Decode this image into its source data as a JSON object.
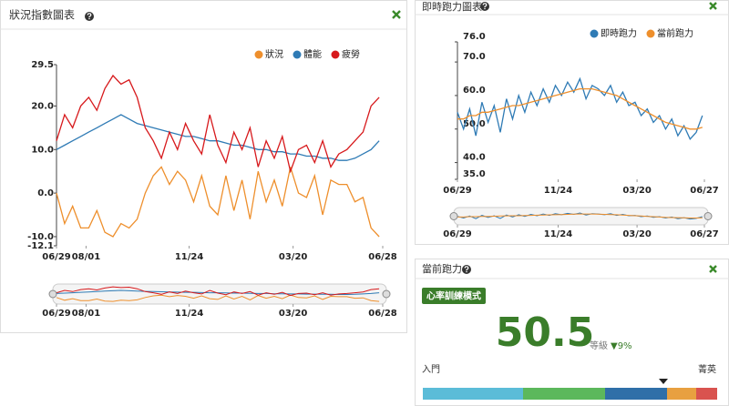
{
  "chart_data": [
    {
      "type": "line",
      "title": "狀況指數圖表",
      "legend": "top-right",
      "x": [
        0,
        9,
        18,
        27,
        36,
        45,
        54,
        63,
        72,
        81,
        90,
        99,
        108,
        117,
        126,
        135,
        144,
        153,
        162,
        171,
        180,
        189,
        198,
        207,
        216,
        225,
        234,
        243,
        252,
        261,
        270,
        279,
        288,
        297,
        306,
        315,
        324,
        333,
        342,
        351,
        360
      ],
      "xlim": [
        0,
        364
      ],
      "xticks": [
        {
          "value": 0,
          "label": "06/29"
        },
        {
          "value": 33,
          "label": "08/01"
        },
        {
          "value": 148,
          "label": "11/24"
        },
        {
          "value": 264,
          "label": "03/20"
        },
        {
          "value": 364,
          "label": "06/28"
        }
      ],
      "ylim": [
        -12.1,
        29.5
      ],
      "yticks": [
        29.5,
        {
          "value": 20,
          "label": "20.0"
        },
        {
          "value": 10,
          "label": "10.0"
        },
        {
          "value": 0,
          "label": "0.0"
        },
        {
          "value": -10,
          "label": "-10.0"
        },
        -12.1
      ],
      "series": [
        {
          "name": "狀況",
          "color": "#ee8f2c",
          "values": [
            0,
            -7,
            -3,
            -8,
            -8,
            -4,
            -9,
            -10,
            -7,
            -8,
            -6,
            0,
            4,
            6,
            2,
            5,
            3,
            -2,
            4,
            -3,
            -5,
            4,
            -4,
            3,
            -6,
            5,
            -2,
            3,
            -3,
            6,
            0,
            -1,
            4,
            -5,
            3,
            2,
            2,
            -2,
            -1,
            -8,
            -10
          ]
        },
        {
          "name": "體能",
          "color": "#2f7bb5",
          "values": [
            10,
            11,
            12,
            13,
            14,
            15,
            16,
            17,
            18,
            17,
            16,
            15.5,
            15,
            14.5,
            14,
            13.5,
            13,
            13,
            12.5,
            12,
            12,
            11.5,
            11,
            11,
            10.5,
            10,
            10,
            9.5,
            9.5,
            9,
            9,
            8.5,
            8.5,
            8,
            8,
            7.5,
            7.5,
            8,
            9,
            10,
            12
          ]
        },
        {
          "name": "疲勞",
          "color": "#d7191c",
          "values": [
            12,
            18,
            15,
            20,
            22,
            19,
            24,
            27,
            25,
            26,
            22,
            15,
            12,
            8,
            14,
            10,
            16,
            12,
            9,
            18,
            11,
            7,
            14,
            10,
            15,
            6,
            12,
            8,
            13,
            5,
            10,
            11,
            7,
            12,
            6,
            9,
            10,
            12,
            14,
            20,
            22
          ]
        }
      ]
    },
    {
      "type": "line",
      "title": "即時跑力圖表",
      "legend": "top-right",
      "x": [
        0,
        9,
        18,
        27,
        36,
        45,
        54,
        63,
        72,
        81,
        90,
        99,
        108,
        117,
        126,
        135,
        144,
        153,
        162,
        171,
        180,
        189,
        198,
        207,
        216,
        225,
        234,
        243,
        252,
        261,
        270,
        279,
        288,
        297,
        306,
        315,
        324,
        333,
        342,
        351,
        360
      ],
      "xlim": [
        0,
        363
      ],
      "xticks": [
        {
          "value": 0,
          "label": "06/29"
        },
        {
          "value": 148,
          "label": "11/24"
        },
        {
          "value": 264,
          "label": "03/20"
        },
        {
          "value": 363,
          "label": "06/27"
        }
      ],
      "ylim": [
        35,
        76
      ],
      "yticks": [
        {
          "value": 76,
          "label": "76.0"
        },
        {
          "value": 70,
          "label": "70.0"
        },
        {
          "value": 60,
          "label": "60.0"
        },
        {
          "value": 50,
          "label": "50.0"
        },
        {
          "value": 40,
          "label": "40.0"
        },
        {
          "value": 35,
          "label": "35.0"
        }
      ],
      "series": [
        {
          "name": "即時跑力",
          "color": "#2f7bb5",
          "values": [
            55,
            50,
            56,
            48,
            58,
            52,
            57,
            49,
            59,
            53,
            60,
            55,
            61,
            57,
            62,
            58,
            63,
            60,
            64,
            61,
            65,
            59,
            63,
            62,
            60,
            63,
            58,
            61,
            57,
            58,
            54,
            56,
            52,
            54,
            50,
            53,
            48,
            51,
            47,
            49,
            54
          ]
        },
        {
          "name": "當前跑力",
          "color": "#ee8f2c",
          "values": [
            53,
            53,
            54,
            54,
            55,
            55,
            55.5,
            56,
            56.5,
            57,
            57,
            57.5,
            58,
            58.5,
            59,
            59.5,
            60,
            60.5,
            61,
            61.5,
            62,
            62,
            62,
            61.5,
            61,
            60.5,
            60,
            59,
            58,
            57,
            56,
            55,
            54,
            53,
            52,
            51.5,
            51,
            50.5,
            50,
            50,
            50.5
          ]
        }
      ]
    }
  ],
  "current_panel": {
    "title": "當前跑力",
    "badge": "心率訓練模式",
    "value": 50.5,
    "level_label": "等級",
    "change": "▼9%",
    "scale_min_label": "入門",
    "scale_max_label": "菁英"
  }
}
